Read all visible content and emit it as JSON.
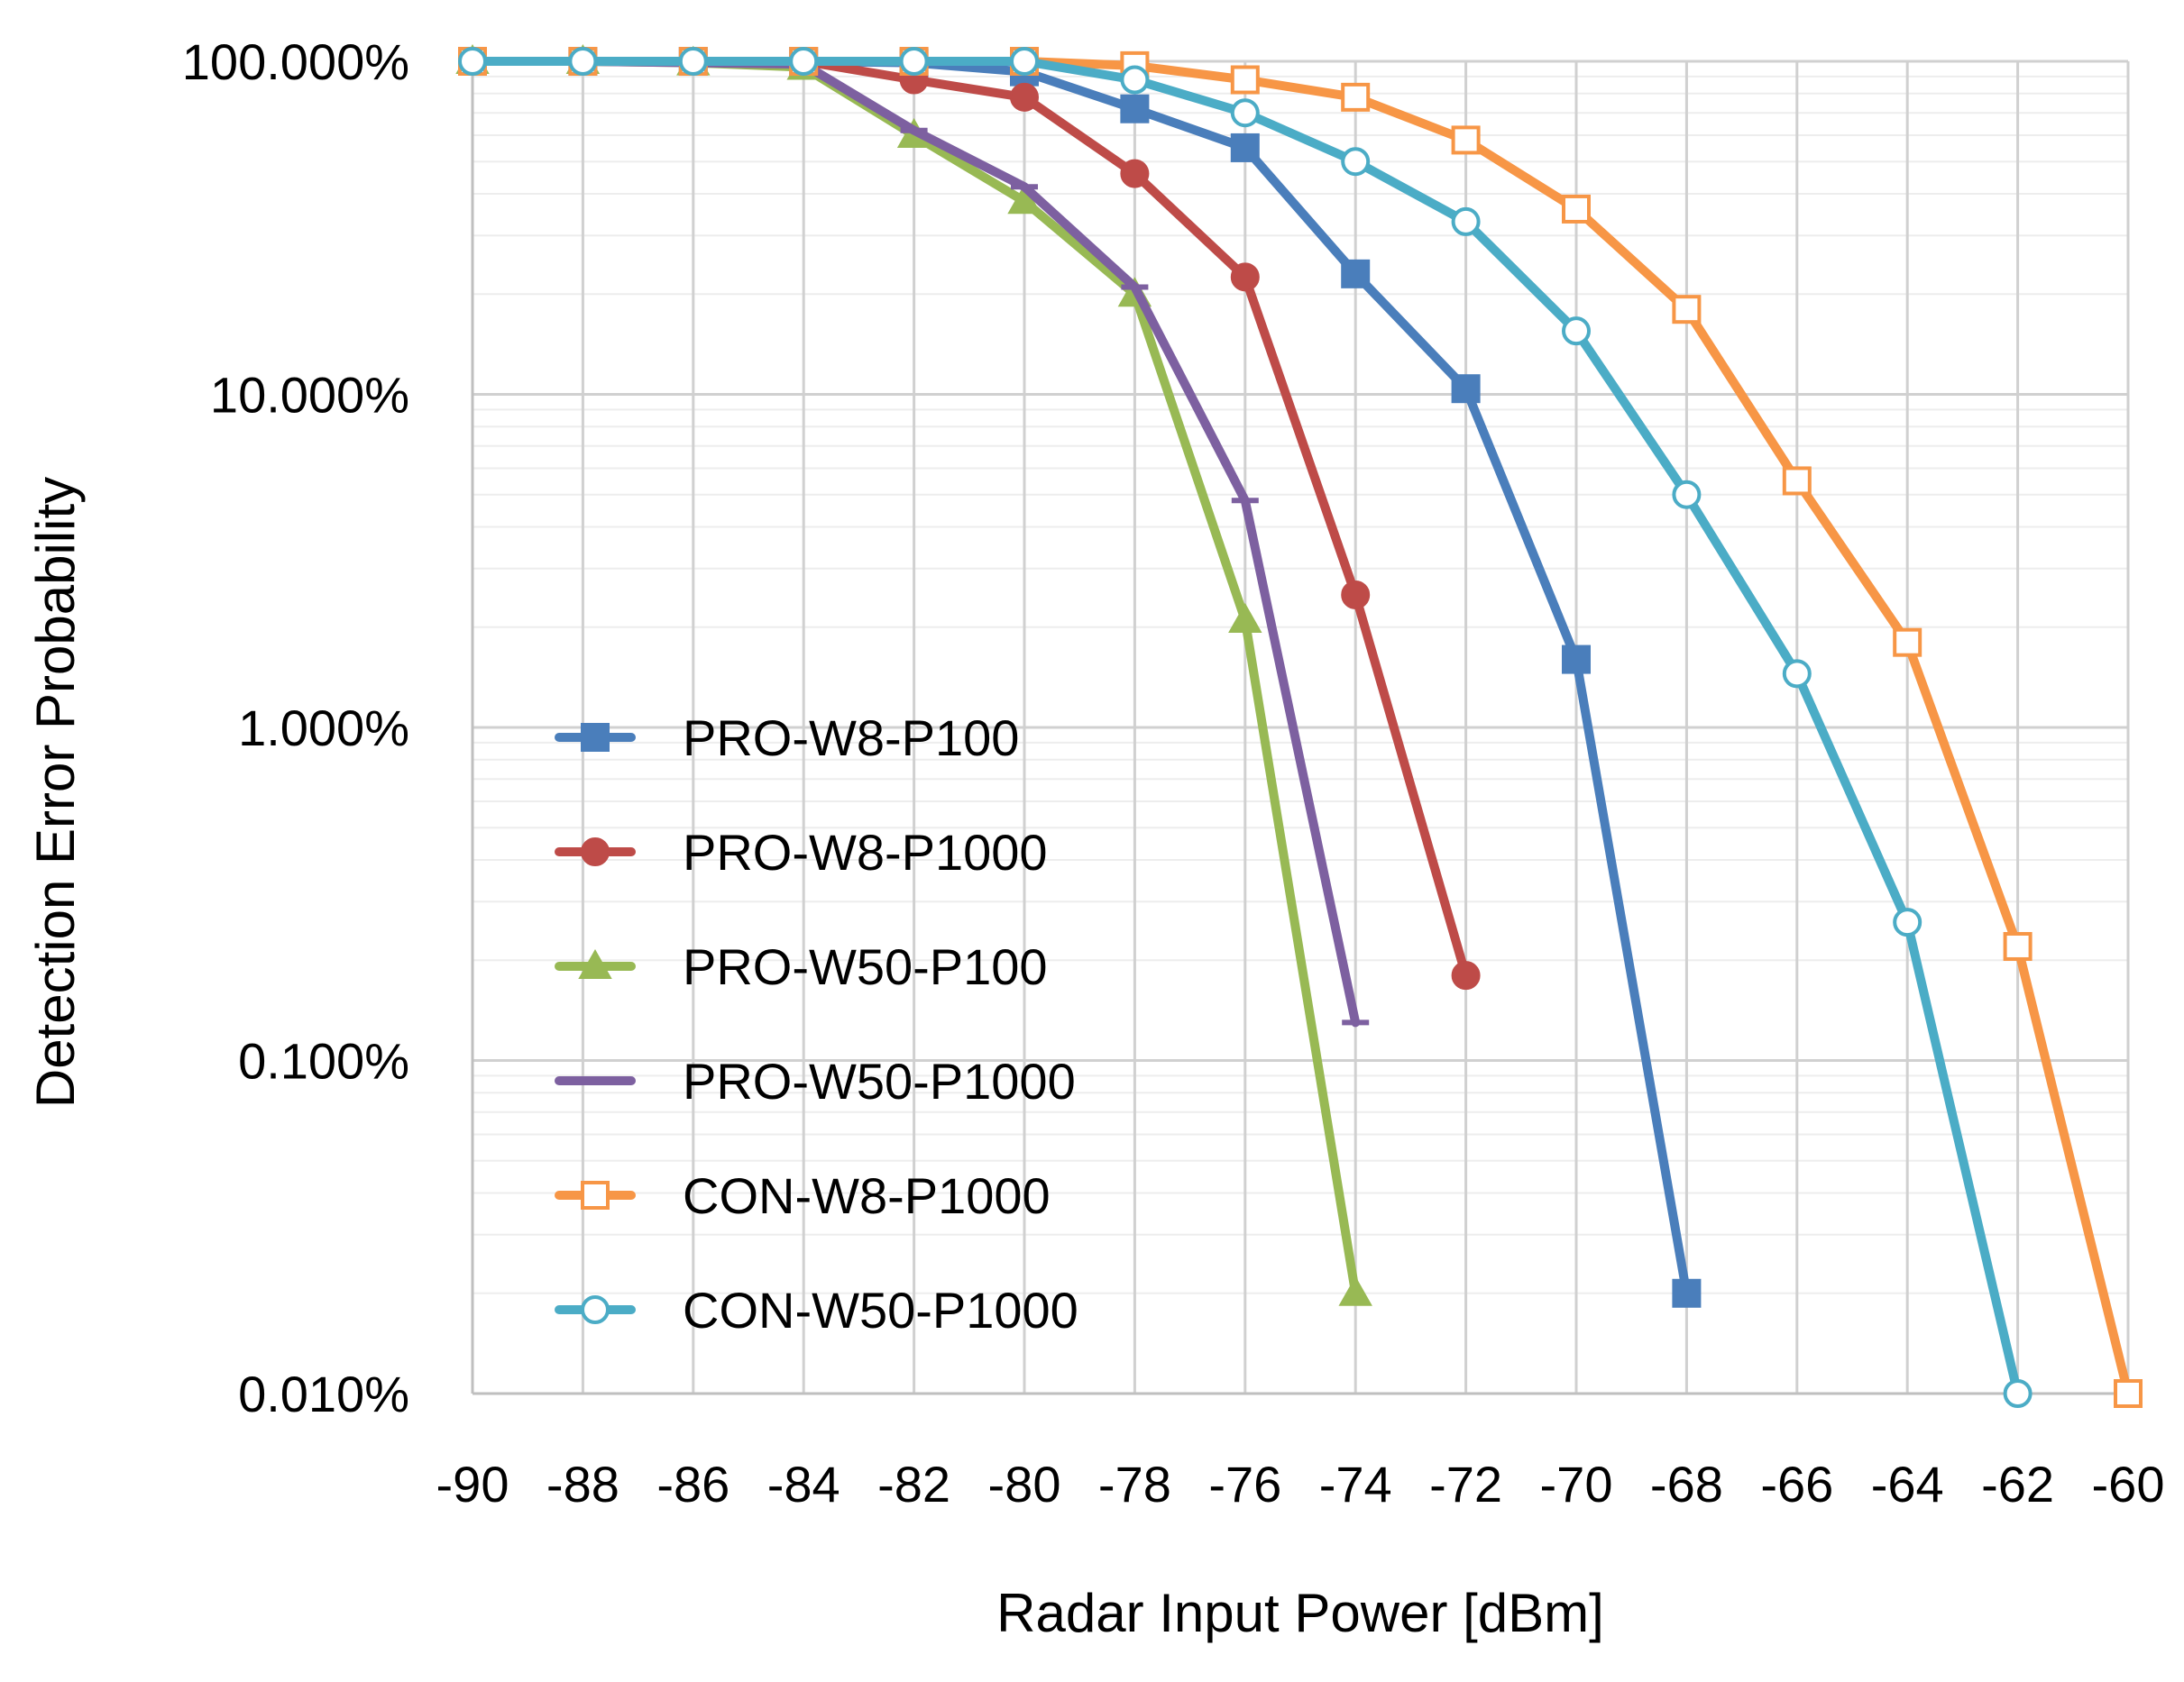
{
  "chart_data": {
    "type": "line",
    "title": "",
    "xlabel": "Radar Input Power [dBm]",
    "ylabel": "Detection Error Probability",
    "xlim": [
      -90,
      -60
    ],
    "ylim": [
      0.0001,
      1
    ],
    "yscale": "log",
    "grid": true,
    "legend_position": "center-left",
    "x_ticks": [
      -90,
      -88,
      -86,
      -84,
      -82,
      -80,
      -78,
      -76,
      -74,
      -72,
      -70,
      -68,
      -66,
      -64,
      -62,
      -60
    ],
    "x_tick_labels": [
      "-90",
      "-88",
      "-86",
      "-84",
      "-82",
      "-80",
      "-78",
      "-76",
      "-74",
      "-72",
      "-70",
      "-68",
      "-66",
      "-64",
      "-62",
      "-60"
    ],
    "y_ticks": [
      1,
      0.1,
      0.01,
      0.001,
      0.0001
    ],
    "y_tick_labels": [
      "100.000%",
      "10.000%",
      "1.000%",
      "0.100%",
      "0.010%"
    ],
    "series": [
      {
        "name": "PRO-W8-P100",
        "color": "#4A7EBB",
        "marker": "square-filled",
        "x": [
          -90,
          -88,
          -86,
          -84,
          -82,
          -80,
          -78,
          -76,
          -74,
          -72,
          -70,
          -68
        ],
        "y": [
          1.0,
          1.0,
          1.0,
          1.0,
          0.99,
          0.93,
          0.72,
          0.55,
          0.23,
          0.104,
          0.016,
          0.0002
        ]
      },
      {
        "name": "PRO-W8-P1000",
        "color": "#BE4B48",
        "marker": "circle-filled",
        "x": [
          -90,
          -88,
          -86,
          -84,
          -82,
          -80,
          -78,
          -76,
          -74,
          -72
        ],
        "y": [
          1.0,
          1.0,
          1.0,
          1.0,
          0.88,
          0.78,
          0.46,
          0.225,
          0.025,
          0.0018
        ]
      },
      {
        "name": "PRO-W50-P100",
        "color": "#98B954",
        "marker": "triangle-filled",
        "x": [
          -90,
          -88,
          -86,
          -84,
          -82,
          -80,
          -78,
          -76,
          -74
        ],
        "y": [
          1.0,
          1.0,
          0.99,
          0.96,
          0.6,
          0.38,
          0.2,
          0.021,
          0.0002
        ]
      },
      {
        "name": "PRO-W50-P1000",
        "color": "#7D60A0",
        "marker": "dash",
        "x": [
          -90,
          -88,
          -86,
          -84,
          -82,
          -80,
          -78,
          -76,
          -74
        ],
        "y": [
          1.0,
          1.0,
          0.99,
          0.98,
          0.62,
          0.42,
          0.21,
          0.048,
          0.0013
        ]
      },
      {
        "name": "CON-W8-P1000",
        "color": "#F79646",
        "marker": "square-open",
        "x": [
          -90,
          -88,
          -86,
          -84,
          -82,
          -80,
          -78,
          -76,
          -74,
          -72,
          -70,
          -68,
          -66,
          -64,
          -62,
          -60
        ],
        "y": [
          1.0,
          1.0,
          1.0,
          1.0,
          1.0,
          1.0,
          0.97,
          0.88,
          0.78,
          0.58,
          0.36,
          0.18,
          0.055,
          0.018,
          0.0022,
          0.0001
        ]
      },
      {
        "name": "CON-W50-P1000",
        "color": "#4BACC6",
        "marker": "circle-open",
        "x": [
          -90,
          -88,
          -86,
          -84,
          -82,
          -80,
          -78,
          -76,
          -74,
          -72,
          -70,
          -68,
          -66,
          -64,
          -62
        ],
        "y": [
          1.0,
          1.0,
          1.0,
          1.0,
          1.0,
          1.0,
          0.88,
          0.7,
          0.5,
          0.33,
          0.155,
          0.05,
          0.0145,
          0.0026,
          0.0001
        ]
      }
    ]
  }
}
